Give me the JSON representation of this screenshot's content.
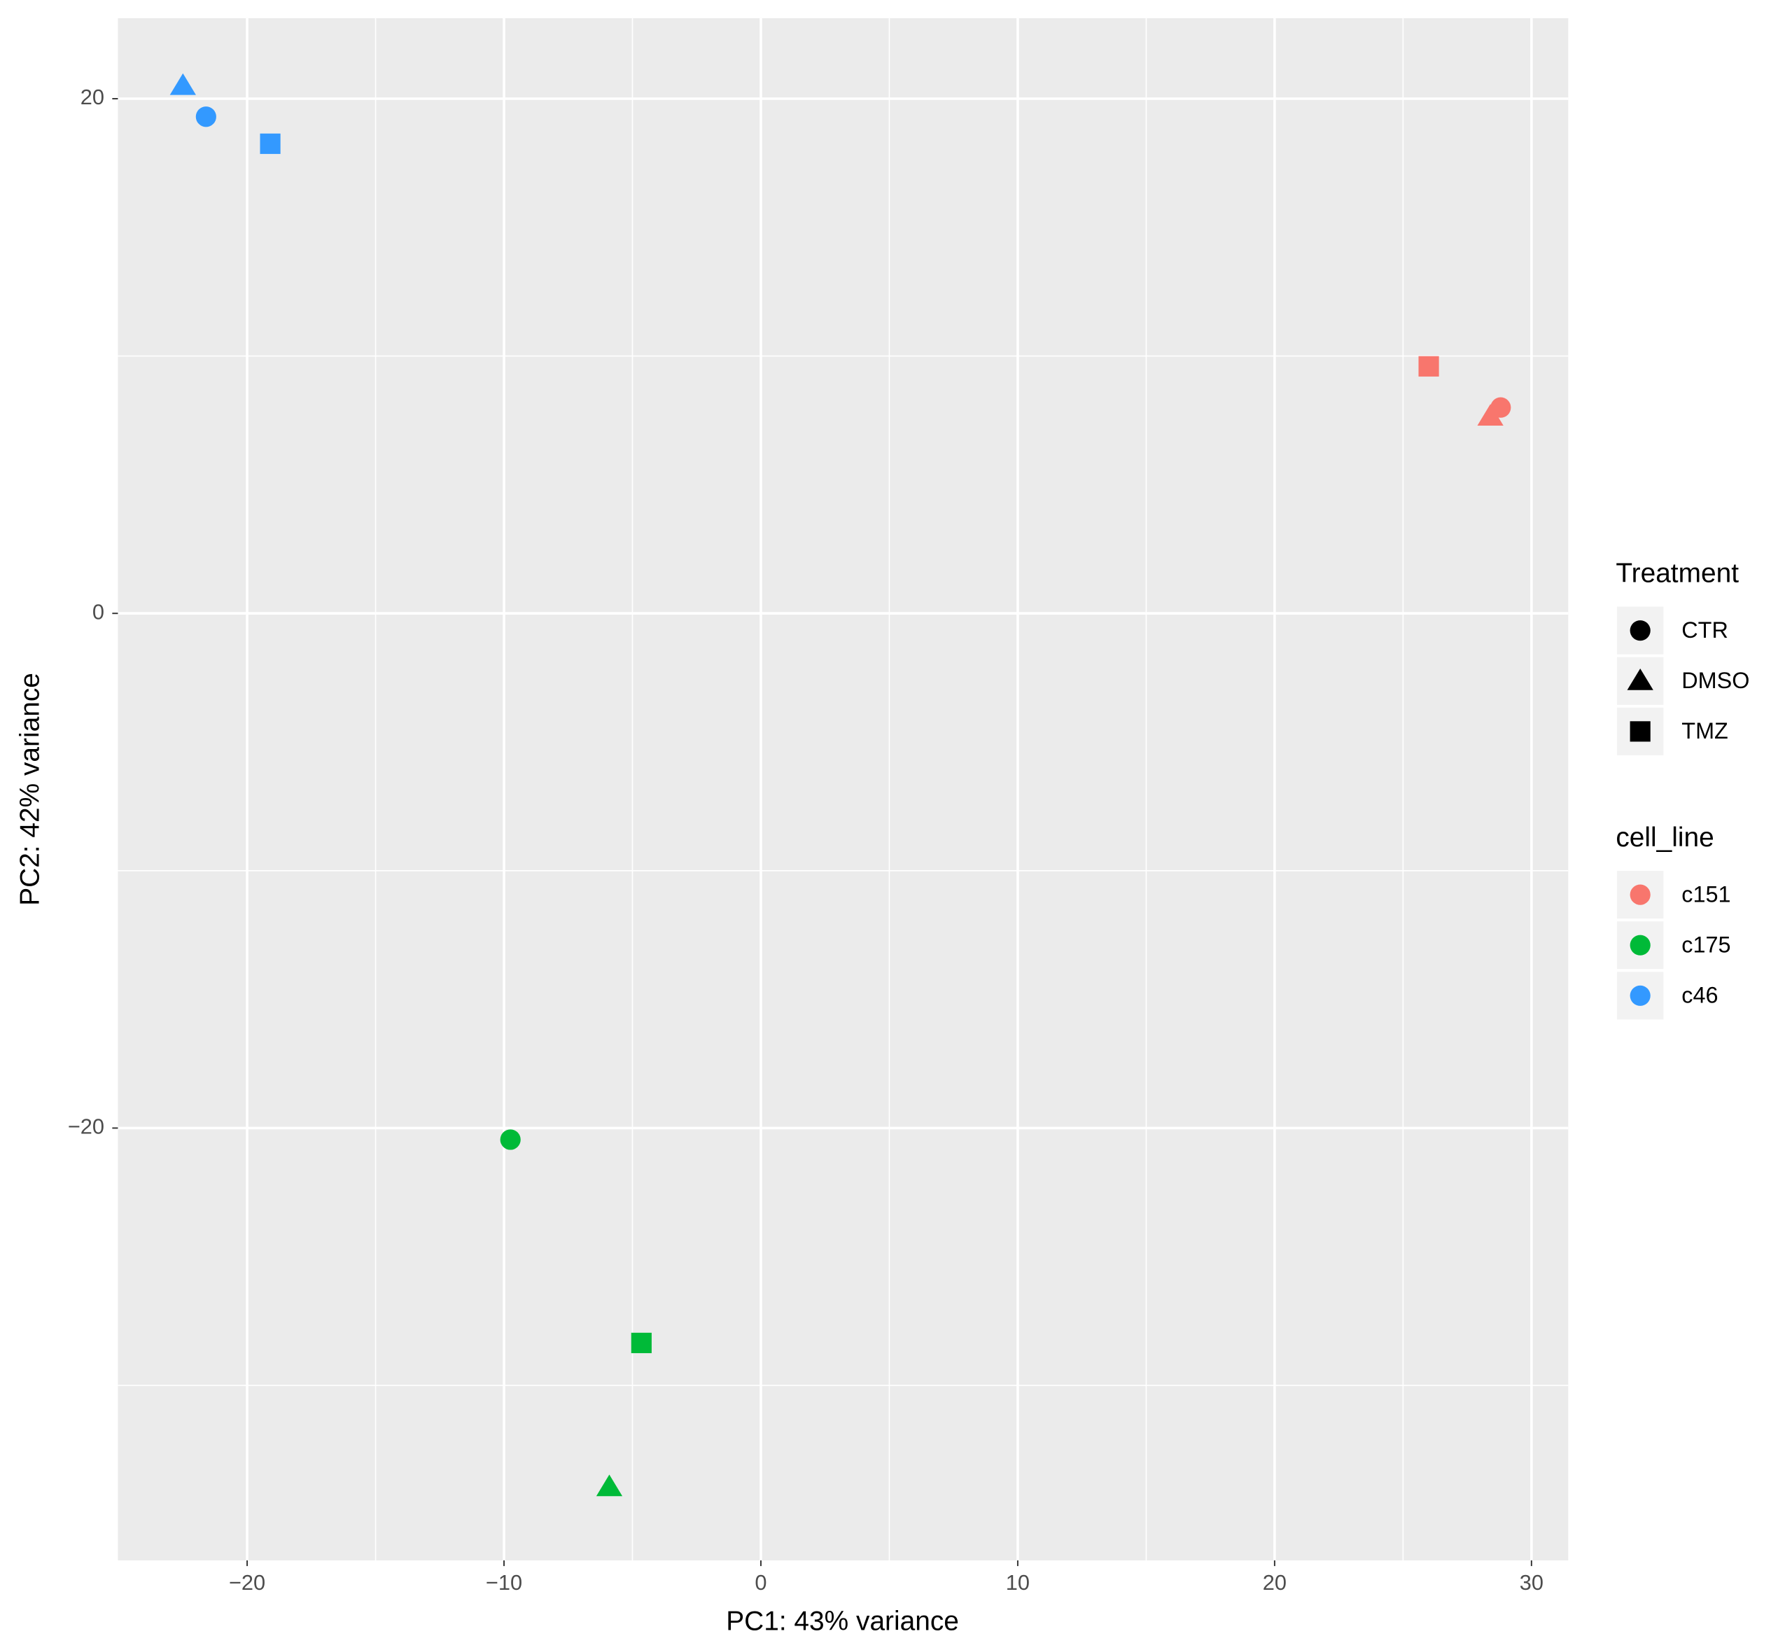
{
  "chart_data": {
    "type": "scatter",
    "x_label": "PC1: 43% variance",
    "y_label": "PC2: 42% variance",
    "xlim": [
      -25.03,
      31.43
    ],
    "ylim": [
      -36.8,
      23.13
    ],
    "xticks": [
      {
        "value": -20,
        "label": "−20"
      },
      {
        "value": -10,
        "label": "−10"
      },
      0,
      10,
      20,
      30
    ],
    "yticks": [
      {
        "value": -20,
        "label": "−20"
      },
      0,
      20
    ],
    "x_minor_ticks": [
      -15,
      -5,
      5,
      15,
      25
    ],
    "y_minor_ticks": [
      -30,
      -10,
      10
    ],
    "grid": true,
    "legend_position": "right",
    "shape_legend": {
      "title": "Treatment",
      "items": [
        {
          "label": "CTR",
          "shape": "circle"
        },
        {
          "label": "DMSO",
          "shape": "triangle"
        },
        {
          "label": "TMZ",
          "shape": "square"
        }
      ]
    },
    "color_legend_title": "cell_line",
    "series": [
      {
        "name": "c151",
        "color": "#f8766d",
        "x": [
          28.8,
          28.4,
          26.0
        ],
        "y": [
          8.0,
          7.65,
          9.6
        ],
        "shapes": [
          "circle",
          "triangle",
          "square"
        ]
      },
      {
        "name": "c175",
        "color": "#00ba38",
        "x": [
          -9.75,
          -5.9,
          -4.65
        ],
        "y": [
          -20.45,
          -33.95,
          -28.35
        ],
        "shapes": [
          "circle",
          "triangle",
          "square"
        ]
      },
      {
        "name": "c46",
        "color": "#3399ff",
        "x": [
          -21.6,
          -22.5,
          -19.1
        ],
        "y": [
          19.3,
          20.5,
          18.25
        ],
        "shapes": [
          "circle",
          "triangle",
          "square"
        ]
      }
    ]
  }
}
